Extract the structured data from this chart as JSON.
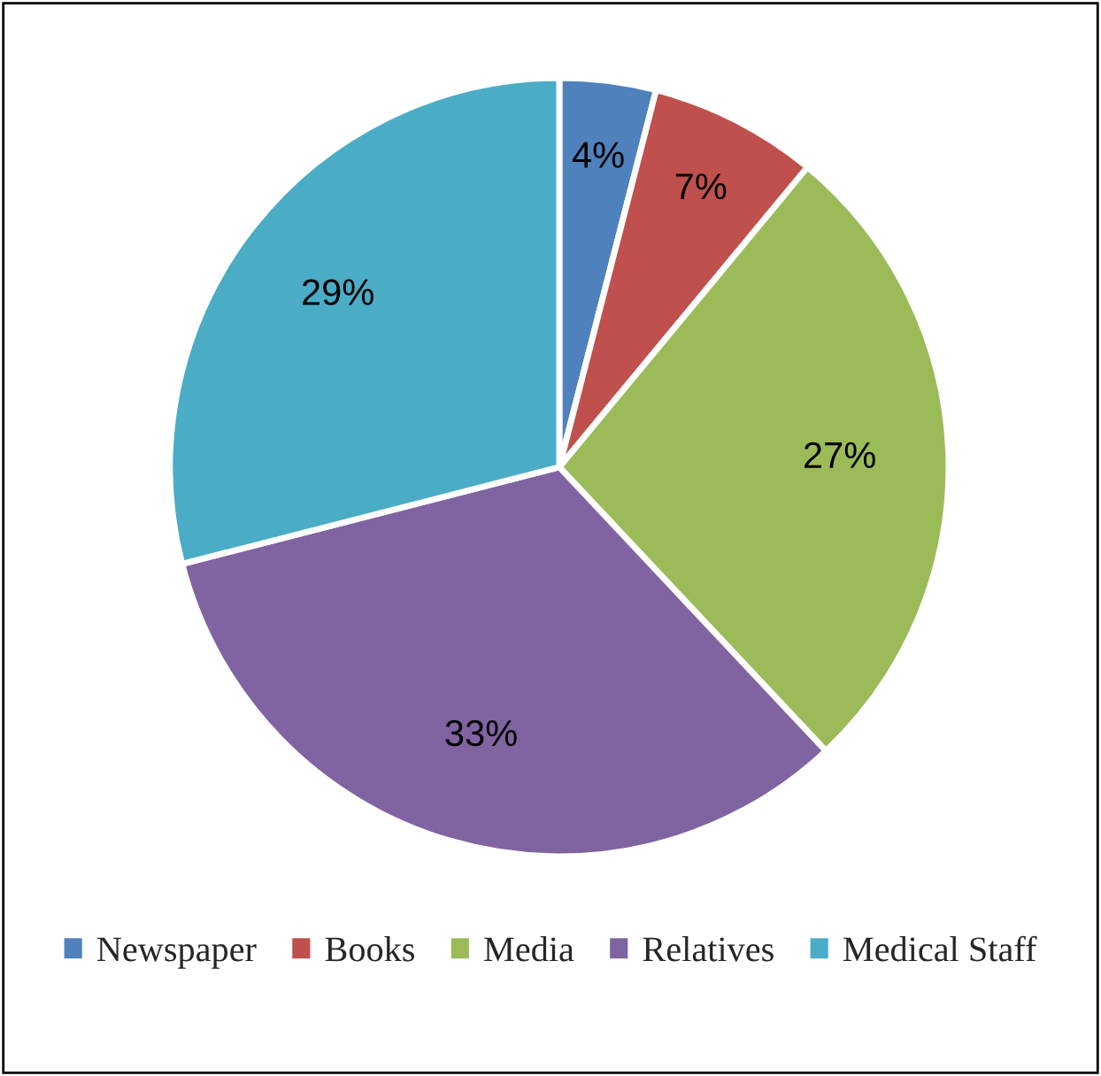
{
  "chart_data": {
    "type": "pie",
    "categories": [
      "Newspaper",
      "Books",
      "Media",
      "Relatives",
      "Medical Staff"
    ],
    "values": [
      4,
      7,
      27,
      33,
      29
    ],
    "colors": [
      "#4f81bd",
      "#c0504d",
      "#9bbb59",
      "#8064a2",
      "#4bacc6"
    ],
    "value_labels": [
      "4%",
      "7%",
      "27%",
      "33%",
      "29%"
    ],
    "legend": "bottom"
  }
}
